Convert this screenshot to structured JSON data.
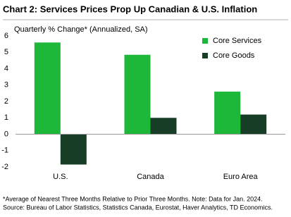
{
  "chart_data": {
    "type": "bar",
    "title": "Chart 2: Services Prices Prop Up Canadian & U.S. Inflation",
    "subtitle": "Quarterly % Change* (Annualized, SA)",
    "categories": [
      "U.S.",
      "Canada",
      "Euro Area"
    ],
    "series": [
      {
        "name": "Core Services",
        "color": "#1db83a",
        "values": [
          5.6,
          4.85,
          2.6
        ]
      },
      {
        "name": "Core Goods",
        "color": "#173d26",
        "values": [
          -1.85,
          1.0,
          1.2
        ]
      }
    ],
    "ylim": [
      -2,
      6
    ],
    "yticks": [
      -2,
      -1,
      0,
      1,
      2,
      3,
      4,
      5,
      6
    ],
    "grid": false,
    "legend": "top-right",
    "footnotes": [
      "*Average of Nearest Three Months Relative to Prior Three Months. Note: Data for Jan. 2024.",
      "Source: Bureau of Labor Statistics, Statistics Canada, Eurostat, Haver Analytics, TD Economics."
    ]
  }
}
